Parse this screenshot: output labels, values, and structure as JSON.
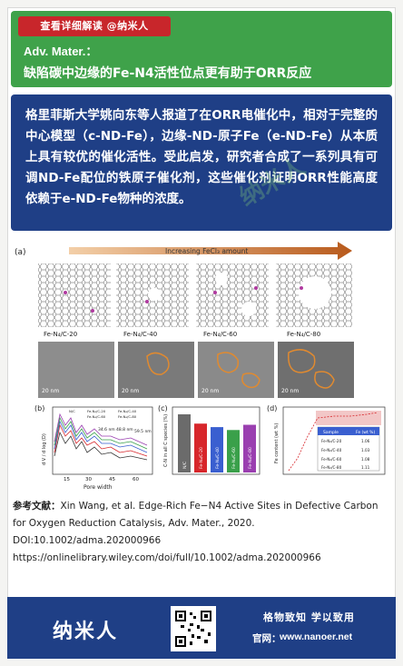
{
  "header": {
    "read_button": "查看详细解读  @纳米人",
    "journal": "Adv. Mater.：",
    "headline": "缺陷碳中边缘的Fe-N4活性位点更有助于ORR反应"
  },
  "summary": {
    "text": "格里菲斯大学姚向东等人报道了在ORR电催化中，相对于完整的中心模型（c-ND-Fe），边缘-ND-原子Fe（e-ND-Fe）从本质上具有较优的催化活性。受此启发，研究者合成了一系列具有可调ND-Fe配位的铁原子催化剂，这些催化剂证明ORR性能高度依赖于e-ND-Fe物种的浓度。"
  },
  "figure": {
    "panel_a": "(a)",
    "panel_b": "(b)",
    "panel_c": "(c)",
    "panel_d": "(d)",
    "arrow_label": "Increasing FeCl₃ amount",
    "sample_labels": [
      "Fe-N₄/C-20",
      "Fe-N₄/C-40",
      "Fe-N₄/C-60",
      "Fe-N₄/C-80"
    ],
    "scale_bar": "20 nm",
    "b_ylabel": "d V / d log (D)",
    "b_xlabel": "Pore width",
    "b_xticks": [
      "15",
      "30",
      "45",
      "60"
    ],
    "b_legend": [
      "N/C",
      "Fe-N₄/C-20",
      "Fe-N₄/C-40",
      "Fe-N₄/C-60",
      "Fe-N₄/C-80"
    ],
    "b_annotations": [
      "34.6 nm",
      "48.8 nm",
      "59.5 nm"
    ],
    "c_ylabel": "C-N in all C species (%)",
    "c_bars": [
      {
        "label": "N/C",
        "value": 100,
        "color": "#6b6b6b"
      },
      {
        "label": "Fe-N₄/C-20",
        "value": 84,
        "color": "#d7262b"
      },
      {
        "label": "Fe-N₄/C-40",
        "value": 78,
        "color": "#3a5fd0"
      },
      {
        "label": "Fe-N₄/C-60",
        "value": 73,
        "color": "#3aa04a"
      },
      {
        "label": "Fe-N₄/C-80",
        "value": 82,
        "color": "#9a3fb0"
      }
    ],
    "d_ylabel": "Fe content (wt %)",
    "d_table_header": [
      "Sample",
      "Fe (wt %)"
    ],
    "d_table_rows": [
      [
        "Fe-N₄/C-20",
        "1.06"
      ],
      [
        "Fe-N₄/C-40",
        "1.03"
      ],
      [
        "Fe-N₄/C-60",
        "1.08"
      ],
      [
        "Fe-N₄/C-80",
        "1.11"
      ]
    ]
  },
  "refs": {
    "label": "参考文献：",
    "line1": "Xin Wang, et al. Edge‐Rich Fe−N4 Active Sites in Defective Carbon for Oxygen Reduction Catalysis, Adv. Mater., 2020.",
    "line2": "DOI:10.1002/adma.202000966",
    "line3": "https://onlinelibrary.wiley.com/doi/full/10.1002/adma.202000966"
  },
  "footer": {
    "brand": "纳米人",
    "slogan": "格物致知  学以致用",
    "site_label": "官网：",
    "site": "www.nanoer.net"
  },
  "colors": {
    "header_green": "#3fa24a",
    "accent_red": "#c8262b",
    "navy": "#1f3f86"
  }
}
